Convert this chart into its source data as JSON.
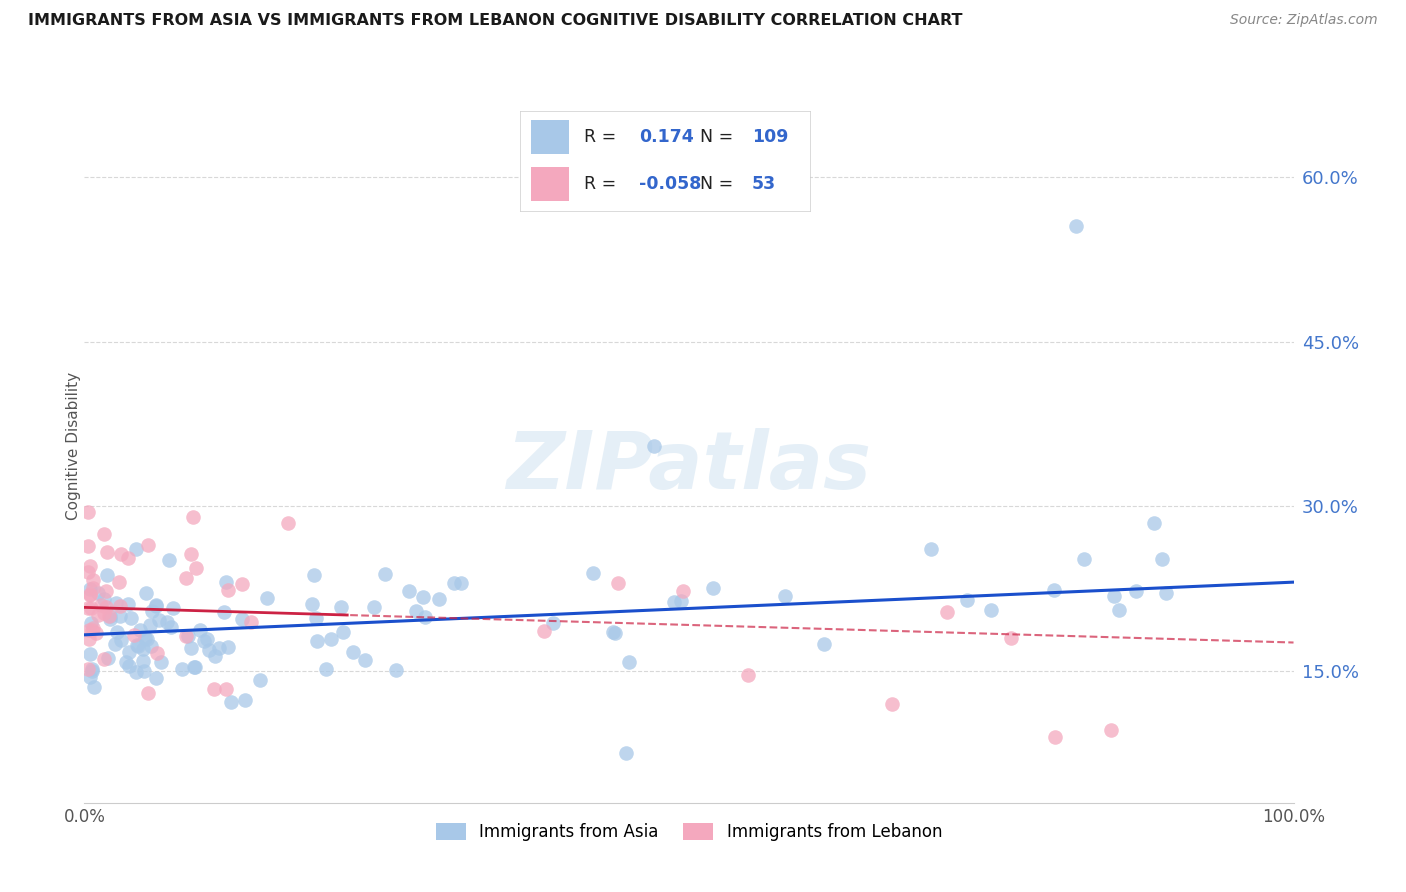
{
  "title": "IMMIGRANTS FROM ASIA VS IMMIGRANTS FROM LEBANON COGNITIVE DISABILITY CORRELATION CHART",
  "source": "Source: ZipAtlas.com",
  "ylabel": "Cognitive Disability",
  "legend_blue_r": "0.174",
  "legend_blue_n": "109",
  "legend_pink_r": "-0.058",
  "legend_pink_n": "53",
  "legend_label_blue": "Immigrants from Asia",
  "legend_label_pink": "Immigrants from Lebanon",
  "ytick_labels": [
    "15.0%",
    "30.0%",
    "45.0%",
    "60.0%"
  ],
  "ytick_values": [
    0.15,
    0.3,
    0.45,
    0.6
  ],
  "xlim": [
    0.0,
    1.0
  ],
  "ylim": [
    0.03,
    0.68
  ],
  "blue_color": "#a8c8e8",
  "pink_color": "#f4a8be",
  "blue_line_color": "#1a4fcc",
  "pink_line_color": "#cc2244",
  "watermark_text": "ZIPatlas",
  "background_color": "#ffffff",
  "grid_color": "#d8d8d8",
  "title_color": "#1a1a1a",
  "source_color": "#888888",
  "ylabel_color": "#555555",
  "tick_color": "#555555",
  "right_tick_color": "#4477cc",
  "blue_slope": 0.048,
  "blue_intercept": 0.183,
  "pink_slope": -0.032,
  "pink_intercept": 0.208
}
